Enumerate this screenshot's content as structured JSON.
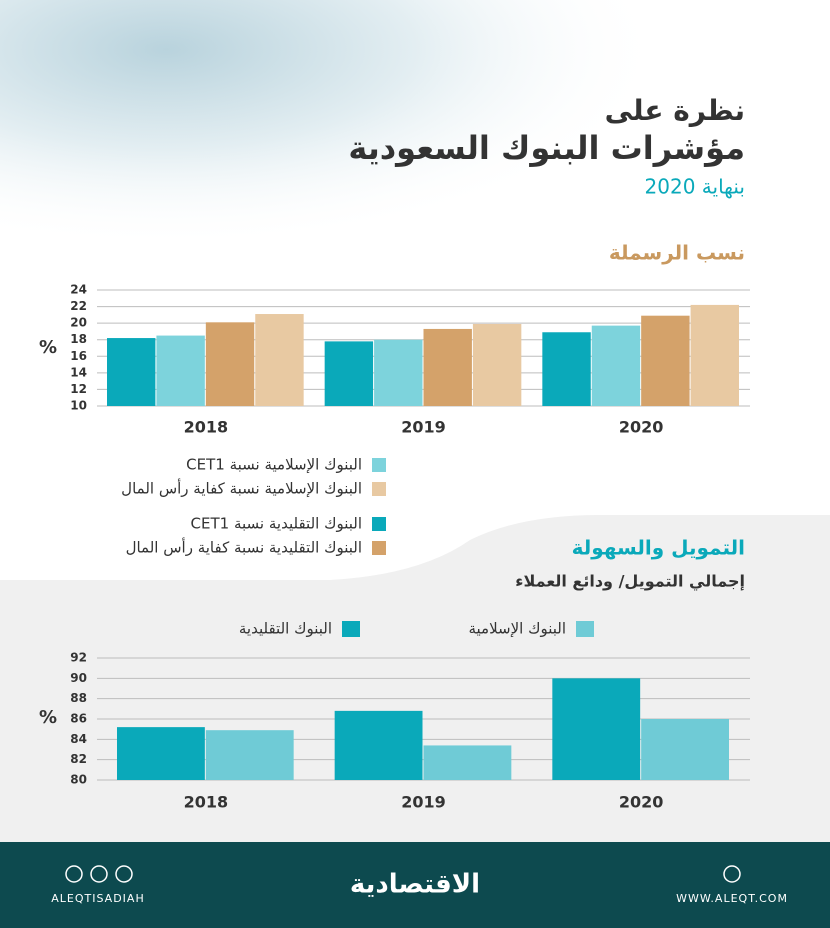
{
  "header": {
    "kicker": "نظرة على",
    "title": "مؤشرات البنوك السعودية",
    "subtitle": "بنهاية 2020"
  },
  "chart_data": [
    {
      "type": "bar",
      "title": "نسب الرسملة",
      "y_label": "%",
      "categories": [
        "2018",
        "2019",
        "2020"
      ],
      "series": [
        {
          "name": "البنوك التقليدية نسبة CET1",
          "color": "#0aa9ba",
          "values": [
            18.2,
            17.8,
            18.9
          ]
        },
        {
          "name": "البنوك الإسلامية نسبة CET1",
          "color": "#7dd3dc",
          "values": [
            18.5,
            18.0,
            19.7
          ]
        },
        {
          "name": "البنوك التقليدية نسبة كفاية رأس المال",
          "color": "#d4a26a",
          "values": [
            20.1,
            19.3,
            20.9
          ]
        },
        {
          "name": "البنوك الإسلامية نسبة كفاية رأس المال",
          "color": "#e8c9a2",
          "values": [
            21.1,
            19.9,
            22.2
          ]
        }
      ],
      "ylim": [
        10,
        24
      ],
      "yticks": [
        10,
        12,
        14,
        16,
        18,
        20,
        22,
        24
      ],
      "grid": true
    },
    {
      "type": "bar",
      "title": "التمويل والسهولة",
      "subtitle": "إجمالي التمويل/ ودائع العملاء",
      "y_label": "%",
      "categories": [
        "2018",
        "2019",
        "2020"
      ],
      "series": [
        {
          "name": "البنوك التقليدية",
          "color": "#0aa9ba",
          "values": [
            85.2,
            86.8,
            90.0
          ]
        },
        {
          "name": "البنوك الإسلامية",
          "color": "#6fcbd6",
          "values": [
            84.9,
            83.4,
            86.0
          ]
        }
      ],
      "ylim": [
        80,
        92
      ],
      "yticks": [
        80,
        82,
        84,
        86,
        88,
        90,
        92
      ],
      "grid": true
    }
  ],
  "footer": {
    "handle": "ALEQTISADIAH",
    "logo": "الاقتصادية",
    "website": "WWW.ALEQT.COM"
  }
}
